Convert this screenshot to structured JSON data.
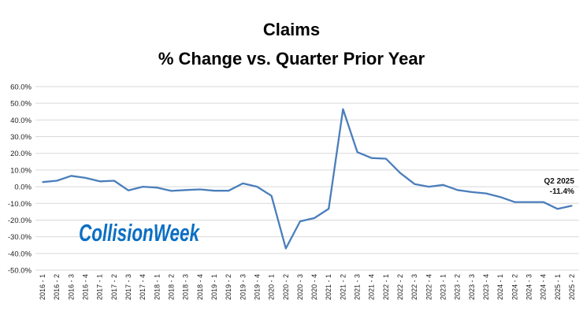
{
  "chart_data": {
    "type": "line",
    "title": "Claims",
    "subtitle": "% Change vs. Quarter Prior Year",
    "xlabel": "",
    "ylabel": "",
    "ylim": [
      -50,
      60
    ],
    "yticks": [
      "60.0%",
      "50.0%",
      "40.0%",
      "30.0%",
      "20.0%",
      "10.0%",
      "0.0%",
      "-10.0%",
      "-20.0%",
      "-30.0%",
      "-40.0%",
      "-50.0%"
    ],
    "grid": true,
    "legend": "none",
    "line_color": "#4a7ebb",
    "categories": [
      "2016 - 1",
      "2016 - 2",
      "2016 - 3",
      "2016 - 4",
      "2017 - 1",
      "2017 - 2",
      "2017 - 3",
      "2017 - 4",
      "2018 - 1",
      "2018 - 2",
      "2018 - 3",
      "2018 - 4",
      "2019 - 1",
      "2019 - 2",
      "2019 - 3",
      "2019 - 4",
      "2020 - 1",
      "2020 - 2",
      "2020 - 3",
      "2020 - 4",
      "2021 - 1",
      "2021 - 2",
      "2021 - 3",
      "2021 - 4",
      "2022 - 1",
      "2022 - 2",
      "2022 - 3",
      "2022 - 4",
      "2023 - 1",
      "2023 - 2",
      "2023 - 3",
      "2023 - 4",
      "2024 - 1",
      "2024 - 2",
      "2024 - 3",
      "2024 - 4",
      "2025 - 1",
      "2025 - 2"
    ],
    "values": [
      2.8,
      3.6,
      6.5,
      5.3,
      3.2,
      3.6,
      -2.2,
      0.0,
      -0.5,
      -2.5,
      -2.0,
      -1.6,
      -2.4,
      -2.4,
      2.0,
      0.0,
      -5.5,
      -37.0,
      -20.8,
      -18.8,
      -13.2,
      46.5,
      20.7,
      17.2,
      16.8,
      8.2,
      1.6,
      0.0,
      1.1,
      -2.0,
      -3.2,
      -4.0,
      -6.2,
      -9.2,
      -9.2,
      -9.2,
      -13.3,
      -11.4
    ],
    "annotations": [
      {
        "category": "2025 - 2",
        "line1": "Q2 2025",
        "line2": "-11.4%"
      }
    ]
  },
  "logo": {
    "text": "CollisionWeek",
    "color": "#0a6fc4"
  }
}
